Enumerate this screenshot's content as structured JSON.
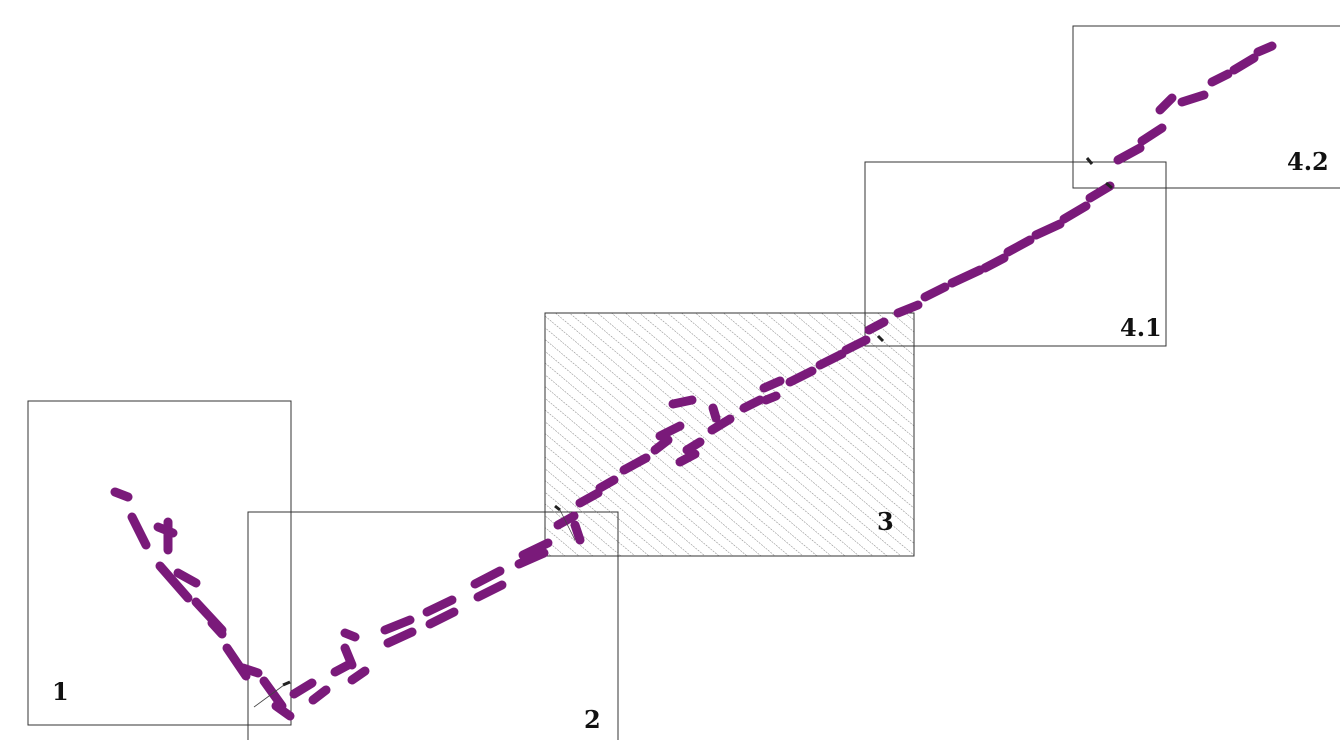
{
  "sections": [
    {
      "id": "1",
      "label": "1",
      "hatched": false
    },
    {
      "id": "2",
      "label": "2",
      "hatched": false
    },
    {
      "id": "3",
      "label": "3",
      "hatched": true
    },
    {
      "id": "4.1",
      "label": "4.1",
      "hatched": false
    },
    {
      "id": "4.2",
      "label": "4.2",
      "hatched": false
    }
  ],
  "colors": {
    "route": "#7a1a7a",
    "frame": "#333333",
    "hatch": "#777777"
  }
}
